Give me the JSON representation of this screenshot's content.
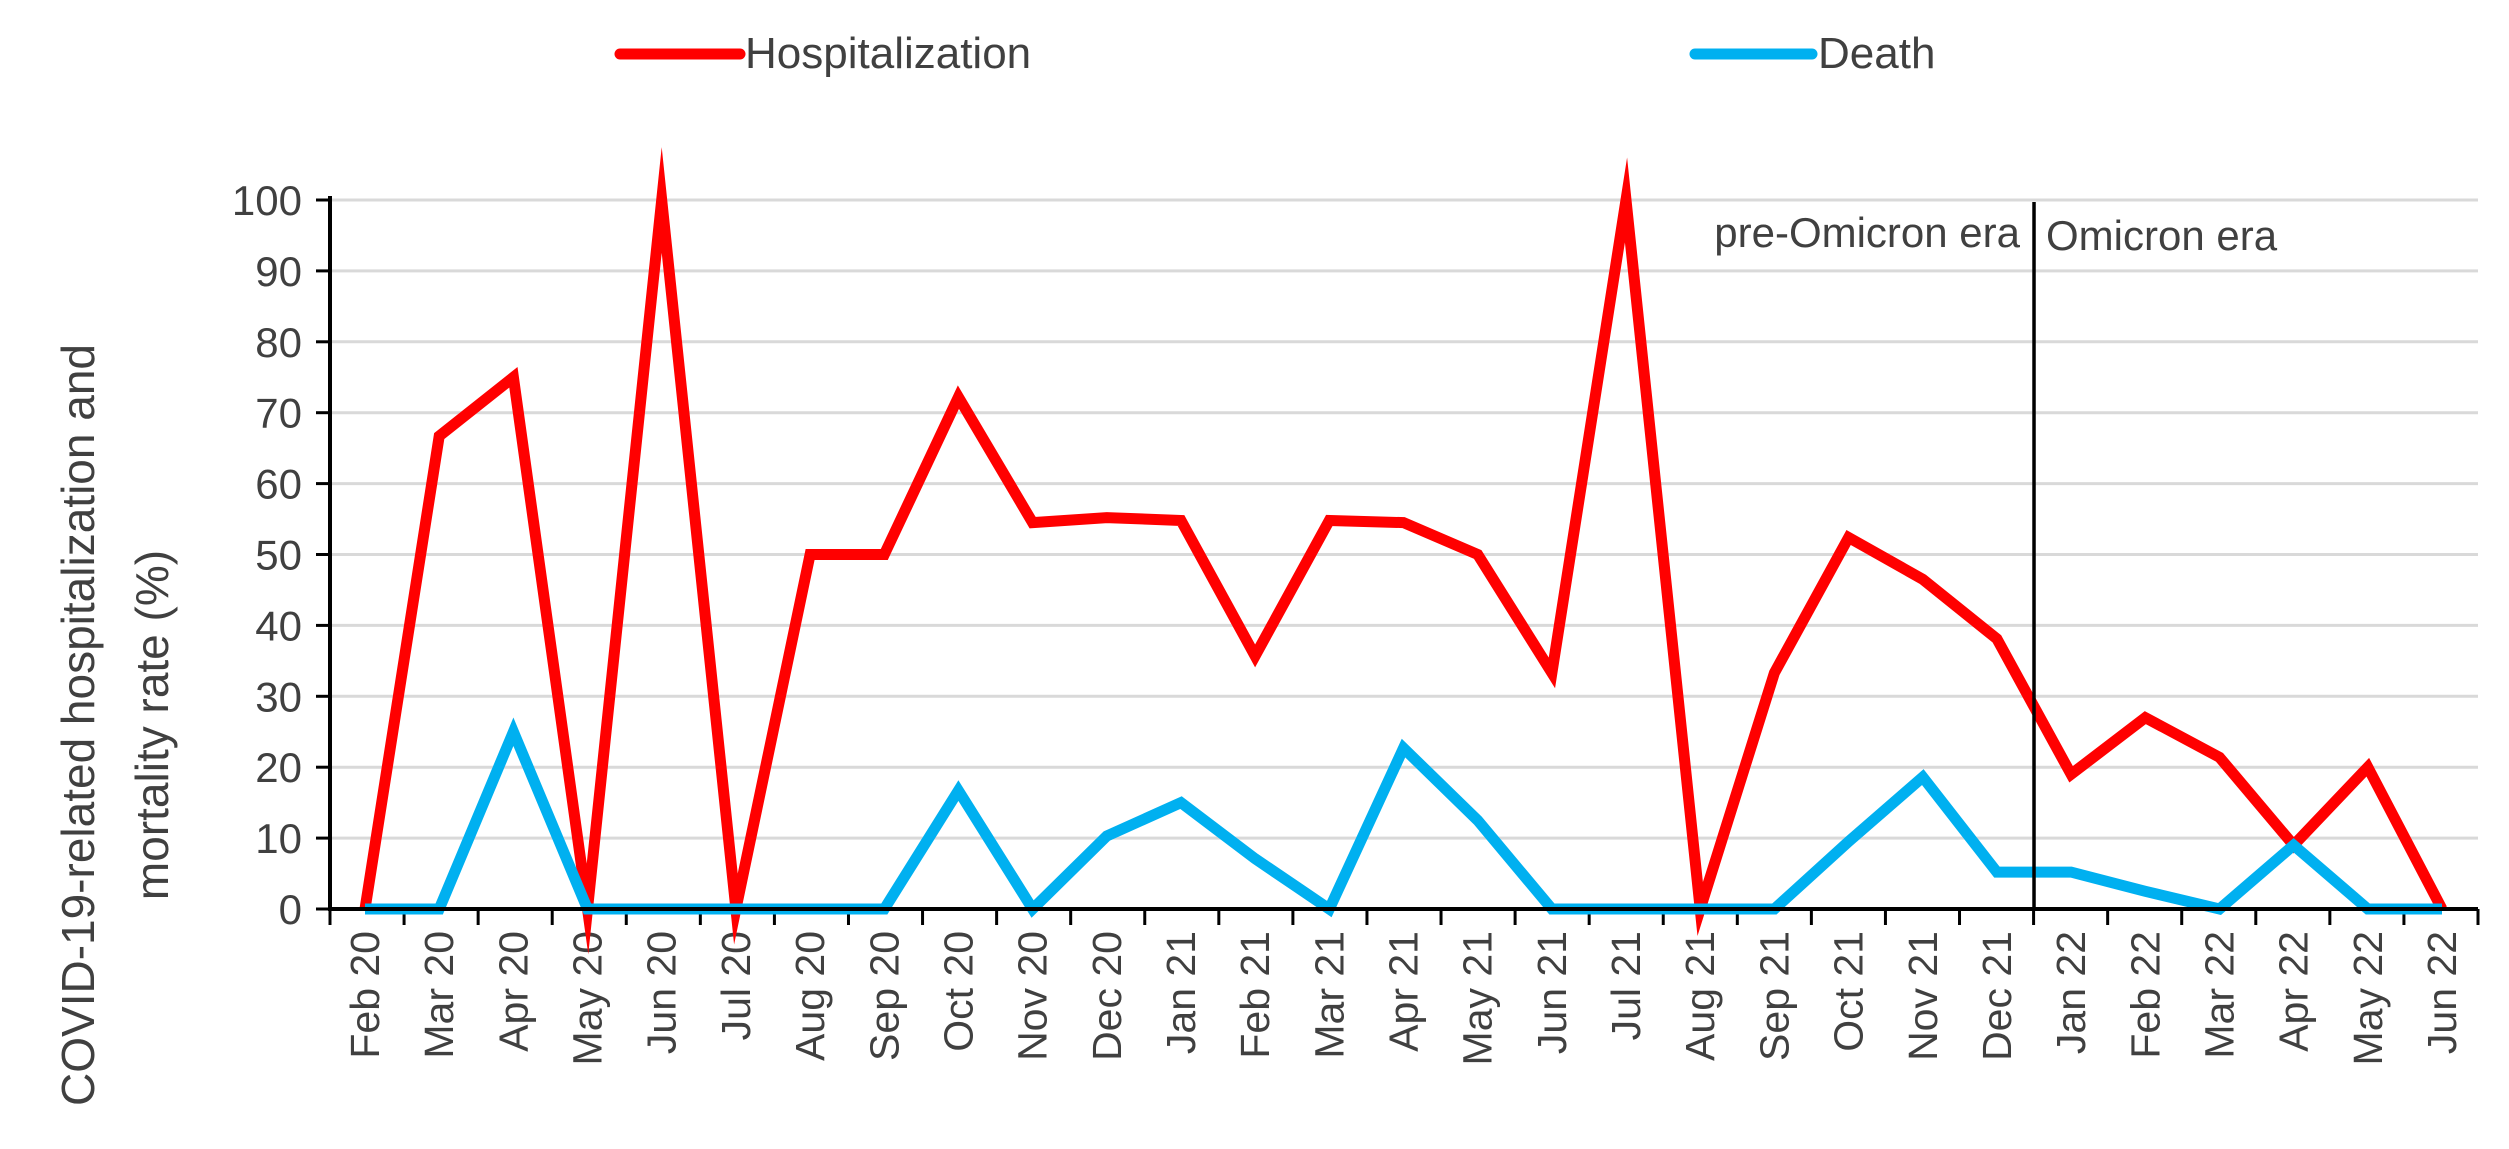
{
  "chart_data": {
    "type": "line",
    "title": "",
    "xlabel": "",
    "ylabel": [
      "COVID-19-related hospitalization and",
      "mortality rate (%)"
    ],
    "ylim": [
      0,
      100
    ],
    "yticks": [
      "0",
      "10",
      "20",
      "30",
      "40",
      "50",
      "60",
      "70",
      "80",
      "90",
      "100"
    ],
    "grid": true,
    "legend_position": "top",
    "categories": [
      "Feb 20",
      "Mar 20",
      "Apr 20",
      "May 20",
      "Jun 20",
      "Jul 20",
      "Aug 20",
      "Sep 20",
      "Oct 20",
      "Nov 20",
      "Dec 20",
      "Jan 21",
      "Feb 21",
      "Mar 21",
      "Apr 21",
      "May 21",
      "Jun 21",
      "Jul 21",
      "Aug 21",
      "Sep 21",
      "Oct 21",
      "Nov 21",
      "Dec 21",
      "Jan 22",
      "Feb 22",
      "Mar 22",
      "Apr 22",
      "May 22",
      "Jun 22"
    ],
    "series": [
      {
        "name": "Hospitalization",
        "color": "#ff0000",
        "values": [
          0,
          66.7,
          75,
          0,
          100,
          0,
          50,
          50,
          72.2,
          54.5,
          55.2,
          54.8,
          35.7,
          54.8,
          54.5,
          50,
          33.3,
          100,
          0,
          33.3,
          52.4,
          46.5,
          38.1,
          19,
          27,
          21.4,
          9,
          20,
          0
        ]
      },
      {
        "name": "Death",
        "color": "#00b0f0",
        "values": [
          0,
          0,
          25,
          0,
          0,
          0,
          0,
          0,
          16.7,
          0,
          10.3,
          15,
          7.1,
          0,
          22.7,
          12.5,
          0,
          0,
          0,
          0,
          9.5,
          18.6,
          5.2,
          5.2,
          2.5,
          0,
          9,
          0,
          0
        ]
      }
    ],
    "annotations": {
      "divider_after_category": "Dec 21",
      "left_label": "pre-Omicron era",
      "right_label": "Omicron era"
    }
  }
}
